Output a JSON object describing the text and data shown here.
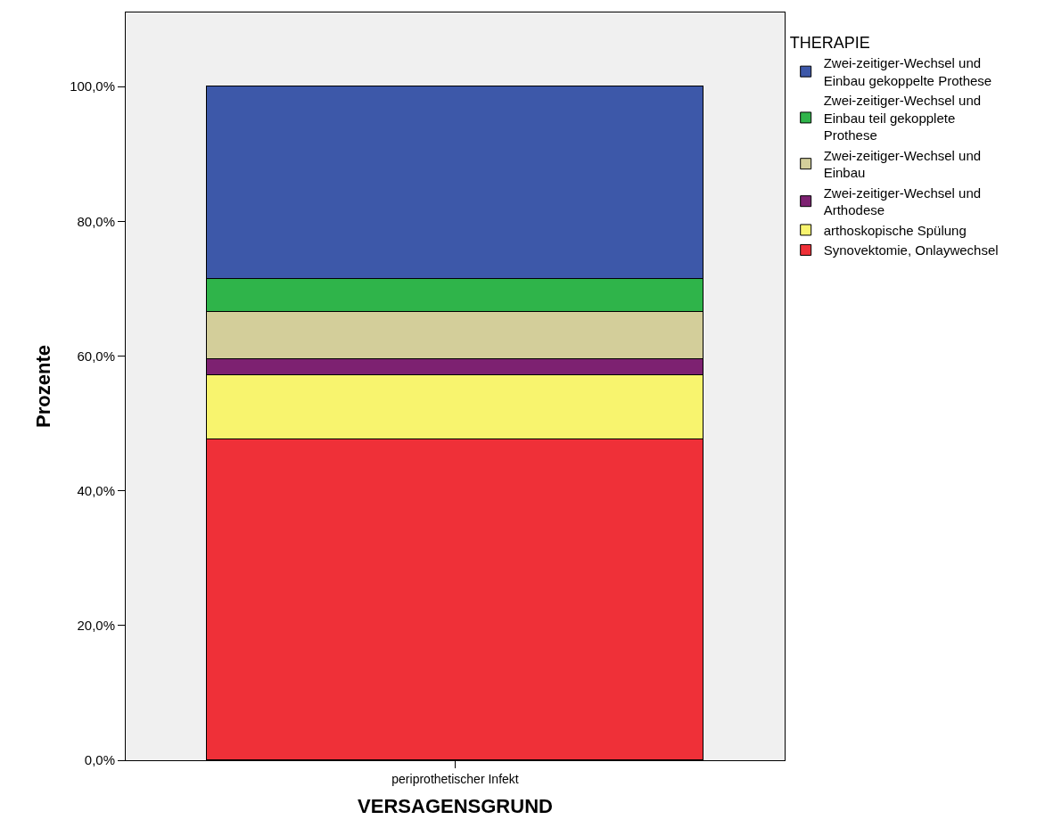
{
  "chart_data": {
    "type": "bar",
    "stacked": true,
    "xlabel": "VERSAGENSGRUND",
    "ylabel": "Prozente",
    "legend_title": "THERAPIE",
    "legend": "right",
    "grid": false,
    "categories": [
      "periprothetischer Infekt"
    ],
    "ylim": [
      0,
      111
    ],
    "yticks": [
      {
        "value": 0,
        "label": "0,0%"
      },
      {
        "value": 20,
        "label": "20,0%"
      },
      {
        "value": 40,
        "label": "40,0%"
      },
      {
        "value": 60,
        "label": "60,0%"
      },
      {
        "value": 80,
        "label": "80,0%"
      },
      {
        "value": 100,
        "label": "100,0%"
      }
    ],
    "series": [
      {
        "name": "Synovektomie, Onlaywechsel",
        "color": "#ef3038",
        "values": [
          47.6
        ]
      },
      {
        "name": "arthoskopische Spülung",
        "color": "#f8f46e",
        "values": [
          9.5
        ]
      },
      {
        "name": "Zwei-zeitiger-Wechsel und Arthodese",
        "color": "#7d2171",
        "values": [
          2.4
        ]
      },
      {
        "name": "Zwei-zeitiger-Wechsel und Einbau",
        "color": "#d3ce9a",
        "values": [
          7.1
        ]
      },
      {
        "name": "Zwei-zeitiger-Wechsel und Einbau teil gekopplete Prothese",
        "color": "#2fb44a",
        "values": [
          4.8
        ]
      },
      {
        "name": "Zwei-zeitiger-Wechsel und Einbau gekoppelte Prothese",
        "color": "#3d58a9",
        "values": [
          28.6
        ]
      }
    ]
  }
}
